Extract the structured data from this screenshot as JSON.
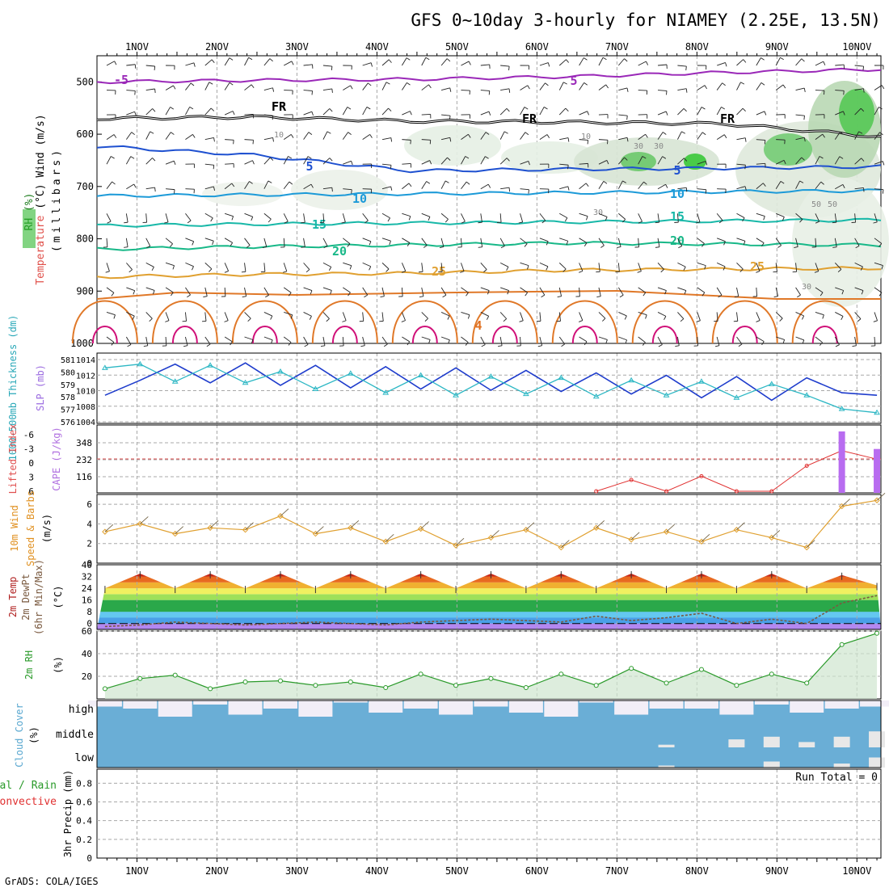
{
  "title": "GFS 0~10day 3-hourly for NIAMEY (2.25E, 13.5N)",
  "credit": "GrADS: COLA/IGES",
  "x_axis": {
    "labels": [
      "1NOV",
      "2NOV",
      "3NOV",
      "4NOV",
      "5NOV",
      "6NOV",
      "7NOV",
      "8NOV",
      "9NOV",
      "10NOV"
    ],
    "range_days": [
      0.5,
      10.3
    ]
  },
  "colors": {
    "grid": "#a8a8a8",
    "thickness": "#1e3ccc",
    "slp": "#2cb7c4",
    "lifted": "#e03030",
    "cape": "#b86cf0",
    "wind10": "#e0a030",
    "rh2m": "#2a9a2a",
    "cloud": "#6aaed6",
    "cloud_bg": "#f2eef7",
    "temp_warm": "#e06020"
  },
  "chart_data": [
    {
      "type": "contour",
      "panel": "upper-air",
      "ylabel_rh": "RH (%)",
      "ylabel_temp": "Temperature (°C)",
      "ylabel_wind": "Wind (m/s)",
      "ylabel_units": "(millibars)",
      "y_ticks": [
        500,
        600,
        700,
        800,
        900,
        1000
      ],
      "ylim": [
        450,
        1000
      ],
      "isotherms": [
        {
          "label": "-5",
          "color": "#9a28b8",
          "levels_mb": [
            500,
            497,
            495,
            490,
            482,
            476
          ]
        },
        {
          "label": "FR",
          "color": "#000000",
          "levels_mb": [
            570,
            567,
            575,
            577,
            580,
            605
          ]
        },
        {
          "label": "5",
          "color": "#1e50d0",
          "levels_mb": [
            623,
            640,
            670,
            667,
            665,
            662
          ]
        },
        {
          "label": "10",
          "color": "#1c9ad8",
          "levels_mb": [
            718,
            716,
            714,
            712,
            710,
            708
          ]
        },
        {
          "label": "15",
          "color": "#18b8a8",
          "levels_mb": [
            775,
            772,
            770,
            768,
            766,
            764
          ]
        },
        {
          "label": "20",
          "color": "#18b888",
          "levels_mb": [
            820,
            815,
            812,
            808,
            810,
            812
          ]
        },
        {
          "label": "25",
          "color": "#e0a030",
          "levels_mb": [
            873,
            868,
            866,
            860,
            858,
            856
          ]
        }
      ],
      "contour_labels": [
        "-5",
        "5",
        "FR",
        "FR",
        "FR",
        "FR",
        "5",
        "5",
        "10",
        "10",
        "15",
        "15",
        "20",
        "20",
        "25",
        "25",
        "4",
        "30",
        "30",
        "30",
        "30",
        "50",
        "50",
        "10",
        "10"
      ]
    },
    {
      "type": "line",
      "panel": "thickness-slp",
      "ylabel_thickness": "1000-500mb Thickness (dm)",
      "ylabel_slp": "SLP (mb)",
      "left_ticks": [
        "581",
        "580",
        "579",
        "578",
        "577",
        "576"
      ],
      "right_ticks": [
        "1014",
        "1012",
        "1010",
        "1008",
        "1004"
      ],
      "ylim_thickness": [
        576,
        581
      ],
      "ylim_slp": [
        1004,
        1014
      ],
      "series": [
        {
          "name": "1000-500mb Thickness",
          "values": [
            578.0,
            579.2,
            580.5,
            579.0,
            580.6,
            578.8,
            580.4,
            578.6,
            580.3,
            578.5,
            580.2,
            578.4,
            580.0,
            578.3,
            579.8,
            578.1,
            579.6,
            577.8,
            579.5,
            577.6,
            579.4,
            578.2,
            578.0
          ]
        },
        {
          "name": "SLP",
          "values": [
            1012.4,
            1013.0,
            1010.2,
            1012.8,
            1010.0,
            1011.8,
            1009.0,
            1011.5,
            1008.4,
            1011.2,
            1008.0,
            1011.0,
            1008.2,
            1010.8,
            1007.8,
            1010.4,
            1008.0,
            1010.2,
            1007.6,
            1009.8,
            1008.0,
            1005.8,
            1005.2
          ]
        }
      ]
    },
    {
      "type": "line",
      "panel": "lifted-cape",
      "ylabel_lifted": "Lifted Index",
      "ylabel_cape": "CAPE (J/kg)",
      "left_ticks": [
        "-6",
        "-3",
        "0",
        "3",
        "6"
      ],
      "right_ticks": [
        "348",
        "232",
        "116"
      ],
      "ylim_lifted": [
        6,
        -6
      ],
      "ylim_cape": [
        0,
        464
      ],
      "series": [
        {
          "name": "Lifted Index",
          "values_note": "",
          "values": [
            null,
            null,
            null,
            null,
            null,
            null,
            null,
            null,
            null,
            null,
            null,
            null,
            null,
            null,
            6.0,
            3.6,
            6.0,
            2.8,
            6.0,
            6.0,
            0.6,
            -2.6,
            -0.8
          ]
        },
        {
          "name": "CAPE",
          "values": [
            0,
            0,
            0,
            0,
            0,
            0,
            0,
            0,
            0,
            0,
            0,
            0,
            0,
            0,
            0,
            0,
            0,
            0,
            0,
            0,
            0,
            420,
            300
          ]
        }
      ]
    },
    {
      "type": "line",
      "panel": "wind10",
      "ylabel": "10m Wind Speed & Barbs (m/s)",
      "y_ticks": [
        "6",
        "4",
        "2",
        "0"
      ],
      "ylim": [
        0,
        7
      ],
      "series": [
        {
          "name": "10m Wind Speed",
          "values": [
            3.2,
            4.0,
            3.0,
            3.6,
            3.4,
            4.8,
            3.0,
            3.6,
            2.2,
            3.5,
            1.8,
            2.6,
            3.4,
            1.6,
            3.6,
            2.4,
            3.2,
            2.2,
            3.4,
            2.6,
            1.6,
            5.8,
            6.4
          ]
        }
      ]
    },
    {
      "type": "area",
      "panel": "temp-dewpoint",
      "ylabel": "2m Temp 2m DewPt (6hr Min/Max) (°C)",
      "y_ticks": [
        "40",
        "32",
        "24",
        "16",
        "8",
        "0"
      ],
      "ylim": [
        -4,
        40
      ],
      "series": [
        {
          "name": "2m Temp",
          "values": [
            24,
            34,
            24,
            34,
            24,
            34,
            24,
            34,
            24,
            34,
            24,
            34,
            24,
            34,
            24,
            34,
            24,
            34,
            24,
            34,
            24,
            33,
            26
          ]
        },
        {
          "name": "2m DewPt",
          "values": [
            -2,
            -1,
            1,
            0,
            -1,
            0,
            1,
            0,
            -1,
            1,
            2,
            3,
            2,
            1,
            5,
            2,
            4,
            7,
            0,
            3,
            0,
            14,
            19
          ]
        }
      ]
    },
    {
      "type": "area",
      "panel": "rh2m",
      "ylabel": "2m RH (%)",
      "y_ticks": [
        "60",
        "40",
        "20"
      ],
      "ylim": [
        0,
        60
      ],
      "series": [
        {
          "name": "2m RH",
          "values": [
            9,
            18,
            21,
            9,
            15,
            16,
            12,
            15,
            10,
            22,
            12,
            18,
            10,
            22,
            12,
            27,
            14,
            26,
            12,
            22,
            14,
            48,
            58
          ]
        }
      ]
    },
    {
      "type": "bar",
      "panel": "cloud",
      "ylabel": "Cloud Cover (%)",
      "row_labels": [
        "high",
        "middle",
        "low"
      ],
      "series": [
        {
          "name": "high",
          "values": [
            70,
            60,
            20,
            80,
            30,
            60,
            20,
            90,
            40,
            60,
            30,
            70,
            40,
            20,
            90,
            30,
            60,
            60,
            30,
            80,
            40,
            60,
            70
          ]
        },
        {
          "name": "middle",
          "values": [
            0,
            0,
            0,
            0,
            0,
            0,
            0,
            0,
            0,
            0,
            0,
            0,
            0,
            0,
            0,
            0,
            10,
            0,
            30,
            40,
            20,
            40,
            60
          ]
        },
        {
          "name": "low",
          "values": [
            0,
            0,
            0,
            0,
            0,
            0,
            0,
            0,
            0,
            0,
            0,
            0,
            0,
            0,
            0,
            0,
            10,
            0,
            0,
            30,
            0,
            20,
            50
          ]
        }
      ]
    },
    {
      "type": "bar",
      "panel": "precip",
      "ylabel_a": "Total / Rain",
      "ylabel_b": "Convective",
      "ylabel_c": "3hr Precip (mm)",
      "y_ticks": [
        "0.8",
        "0.6",
        "0.4",
        "0.2",
        "0"
      ],
      "ylim": [
        0,
        0.95
      ],
      "run_total": "Run Total = 0",
      "series": [
        {
          "name": "Total",
          "values": [
            0,
            0,
            0,
            0,
            0,
            0,
            0,
            0,
            0,
            0,
            0,
            0,
            0,
            0,
            0,
            0,
            0,
            0,
            0,
            0,
            0,
            0,
            0
          ]
        }
      ]
    }
  ]
}
